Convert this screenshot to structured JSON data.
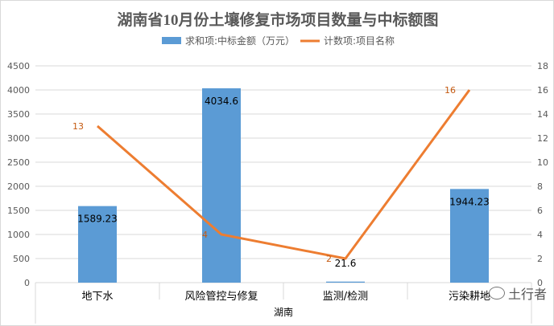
{
  "chart_data": {
    "type": "bar+line",
    "title": "湖南省10月份土壤修复市场项目数量与中标额图",
    "xlabel": "湖南",
    "categories": [
      "地下水",
      "风险管控与修复",
      "监测/检测",
      "污染耕地"
    ],
    "series": [
      {
        "name": "求和项:中标金额（万元）",
        "type": "bar",
        "axis": "left",
        "values": [
          1589.23,
          4034.6,
          21.6,
          1944.23
        ],
        "labels": [
          "1589.23",
          "4034.6",
          "21.6",
          "1944.23"
        ],
        "color": "#5b9bd5"
      },
      {
        "name": "计数项:项目名称",
        "type": "line",
        "axis": "right",
        "values": [
          13,
          4,
          2,
          16
        ],
        "labels": [
          "13",
          "4",
          "2",
          "16"
        ],
        "color": "#ed7d31"
      }
    ],
    "ylim_left": [
      0,
      4500
    ],
    "yticks_left": [
      "0",
      "500",
      "1000",
      "1500",
      "2000",
      "2500",
      "3000",
      "3500",
      "4000",
      "4500"
    ],
    "ylim_right": [
      0,
      18
    ],
    "yticks_right": [
      "0",
      "2",
      "4",
      "6",
      "8",
      "10",
      "12",
      "14",
      "16",
      "18"
    ],
    "grid": true,
    "legend": "top"
  },
  "watermark": "土行者"
}
